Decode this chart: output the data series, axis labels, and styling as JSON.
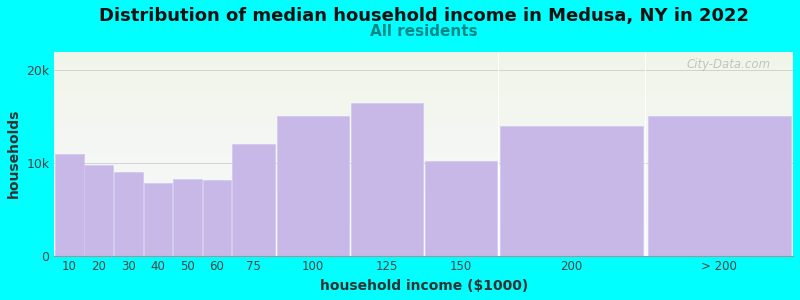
{
  "title": "Distribution of median household income in Medusa, NY in 2022",
  "subtitle": "All residents",
  "xlabel": "household income ($1000)",
  "ylabel": "households",
  "background_color": "#00FFFF",
  "bar_color": "#c8b8e8",
  "bar_edge_color": "#d0c8ee",
  "categories": [
    "10",
    "20",
    "30",
    "40",
    "50",
    "60",
    "75",
    "100",
    "125",
    "150",
    "200",
    "> 200"
  ],
  "values": [
    11000,
    9800,
    9000,
    7800,
    8300,
    8100,
    12000,
    15000,
    16500,
    10200,
    14000,
    15000
  ],
  "left_edges": [
    0,
    10,
    20,
    30,
    40,
    50,
    60,
    75,
    100,
    125,
    150,
    200
  ],
  "widths": [
    10,
    10,
    10,
    10,
    10,
    10,
    15,
    25,
    25,
    25,
    50,
    50
  ],
  "ylim": [
    0,
    22000
  ],
  "yticks": [
    0,
    10000,
    20000
  ],
  "ytick_labels": [
    "0",
    "10k",
    "20k"
  ],
  "xlim": [
    0,
    250
  ],
  "title_fontsize": 13,
  "subtitle_fontsize": 11,
  "watermark_text": "City-Data.com"
}
